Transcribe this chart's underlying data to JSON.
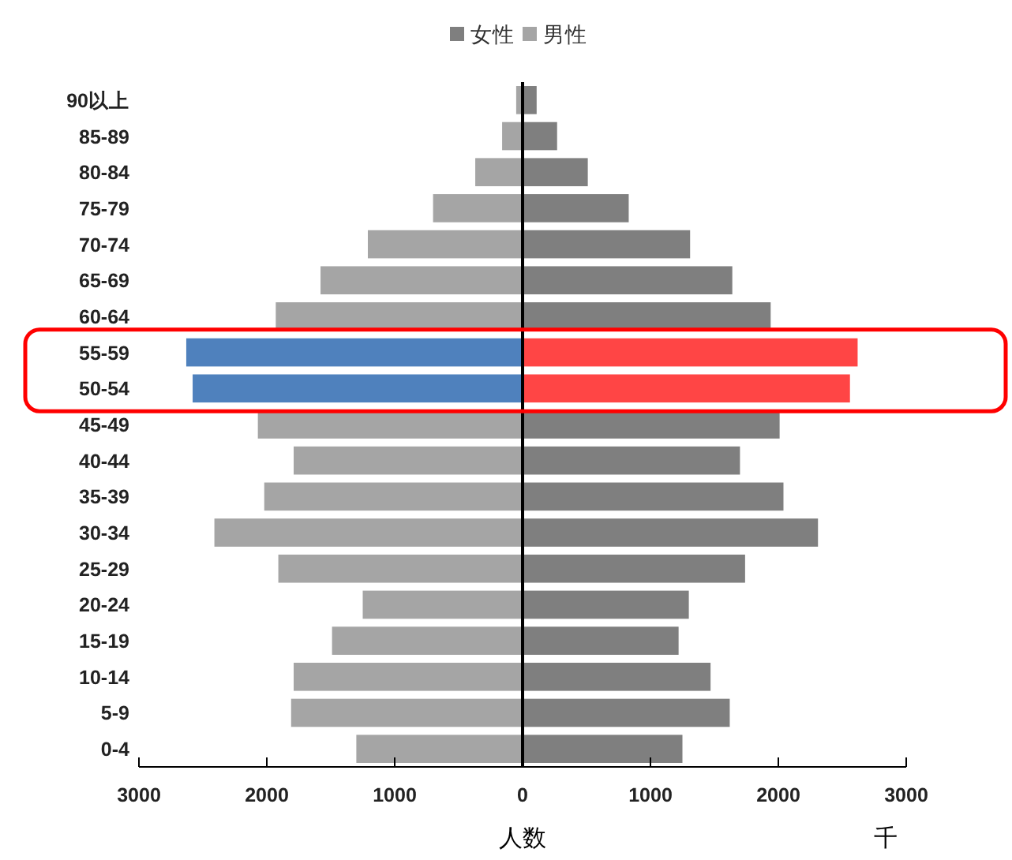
{
  "chart_data": {
    "type": "bar",
    "orientation": "horizontal",
    "xlabel": "人数",
    "annotations": [
      "千"
    ],
    "categories": [
      "90以上",
      "85-89",
      "80-84",
      "75-79",
      "70-74",
      "65-69",
      "60-64",
      "55-59",
      "50-54",
      "45-49",
      "40-44",
      "35-39",
      "30-34",
      "25-29",
      "20-24",
      "15-19",
      "10-14",
      "5-9",
      "0-4"
    ],
    "series": [
      {
        "name": "女性",
        "color": "#7f7f7f",
        "values": [
          110,
          270,
          510,
          830,
          1310,
          1640,
          1940,
          2620,
          2560,
          2010,
          1700,
          2040,
          2310,
          1740,
          1300,
          1220,
          1470,
          1620,
          1250
        ],
        "colors": [
          "#7f7f7f",
          "#7f7f7f",
          "#7f7f7f",
          "#7f7f7f",
          "#7f7f7f",
          "#7f7f7f",
          "#7f7f7f",
          "#ff4545",
          "#ff4545",
          "#7f7f7f",
          "#7f7f7f",
          "#7f7f7f",
          "#7f7f7f",
          "#7f7f7f",
          "#7f7f7f",
          "#7f7f7f",
          "#7f7f7f",
          "#7f7f7f",
          "#7f7f7f"
        ]
      },
      {
        "name": "男性",
        "color": "#a5a5a5",
        "values": [
          -50,
          -160,
          -370,
          -700,
          -1210,
          -1580,
          -1930,
          -2630,
          -2580,
          -2070,
          -1790,
          -2020,
          -2410,
          -1910,
          -1250,
          -1490,
          -1790,
          -1810,
          -1300
        ],
        "colors": [
          "#a5a5a5",
          "#a5a5a5",
          "#a5a5a5",
          "#a5a5a5",
          "#a5a5a5",
          "#a5a5a5",
          "#a5a5a5",
          "#4f81bd",
          "#4f81bd",
          "#a5a5a5",
          "#a5a5a5",
          "#a5a5a5",
          "#a5a5a5",
          "#a5a5a5",
          "#a5a5a5",
          "#a5a5a5",
          "#a5a5a5",
          "#a5a5a5",
          "#a5a5a5"
        ]
      }
    ],
    "xlim": [
      -3000,
      3000
    ],
    "xticks": [
      {
        "value": -3000,
        "label": "3000"
      },
      {
        "value": -2000,
        "label": "2000"
      },
      {
        "value": -1000,
        "label": "1000"
      },
      0,
      1000,
      2000,
      3000
    ],
    "stacked": true,
    "legend": "top"
  }
}
